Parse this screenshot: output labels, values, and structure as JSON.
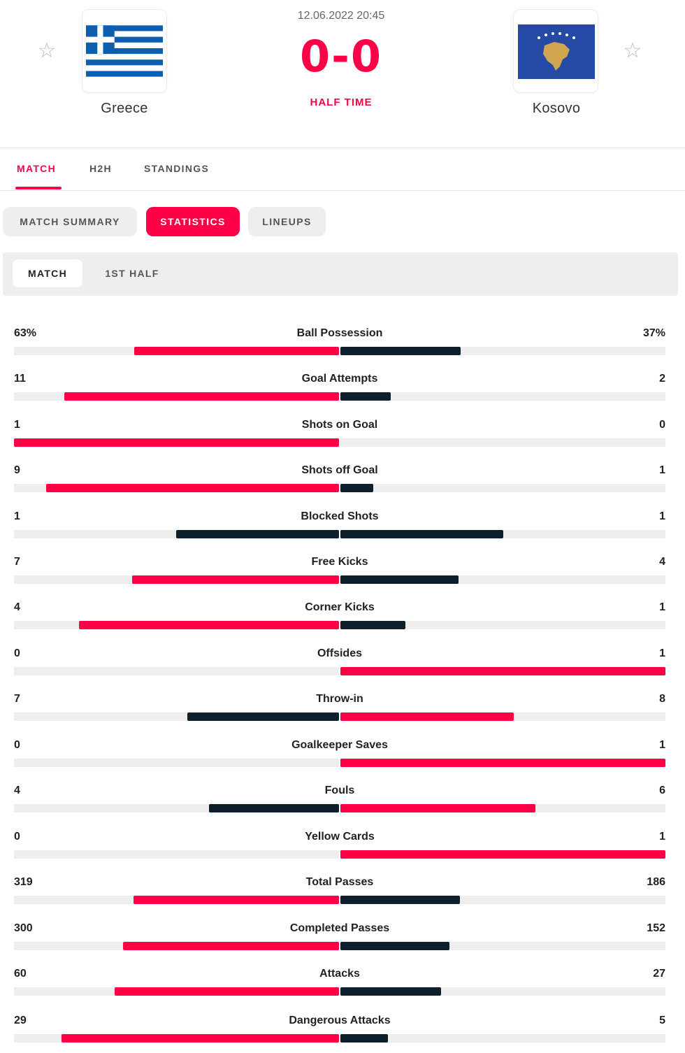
{
  "match": {
    "datetime": "12.06.2022 20:45",
    "score": "0-0",
    "status": "HALF TIME",
    "home": {
      "name": "Greece",
      "flag": "greece-flag",
      "favorite_icon": "star-outline-icon"
    },
    "away": {
      "name": "Kosovo",
      "flag": "kosovo-flag",
      "favorite_icon": "star-outline-icon"
    }
  },
  "tabs": [
    {
      "label": "MATCH",
      "active": true
    },
    {
      "label": "H2H",
      "active": false
    },
    {
      "label": "STANDINGS",
      "active": false
    }
  ],
  "subtabs": [
    {
      "label": "MATCH SUMMARY",
      "active": false
    },
    {
      "label": "STATISTICS",
      "active": true
    },
    {
      "label": "LINEUPS",
      "active": false
    }
  ],
  "period_filter": [
    {
      "label": "MATCH",
      "active": true
    },
    {
      "label": "1ST HALF",
      "active": false
    }
  ],
  "colors": {
    "accent": "#ff0046",
    "dark": "#0d1f2b",
    "track": "#eeeeee",
    "greece_blue": "#0d5eaf",
    "kosovo_blue": "#244aa5",
    "kosovo_gold": "#d0a650"
  },
  "statistics": [
    {
      "category": "Ball Possession",
      "home": "63%",
      "away": "37%",
      "home_value": 63,
      "away_value": 37
    },
    {
      "category": "Goal Attempts",
      "home": "11",
      "away": "2",
      "home_value": 11,
      "away_value": 2
    },
    {
      "category": "Shots on Goal",
      "home": "1",
      "away": "0",
      "home_value": 1,
      "away_value": 0
    },
    {
      "category": "Shots off Goal",
      "home": "9",
      "away": "1",
      "home_value": 9,
      "away_value": 1
    },
    {
      "category": "Blocked Shots",
      "home": "1",
      "away": "1",
      "home_value": 1,
      "away_value": 1
    },
    {
      "category": "Free Kicks",
      "home": "7",
      "away": "4",
      "home_value": 7,
      "away_value": 4
    },
    {
      "category": "Corner Kicks",
      "home": "4",
      "away": "1",
      "home_value": 4,
      "away_value": 1
    },
    {
      "category": "Offsides",
      "home": "0",
      "away": "1",
      "home_value": 0,
      "away_value": 1
    },
    {
      "category": "Throw-in",
      "home": "7",
      "away": "8",
      "home_value": 7,
      "away_value": 8
    },
    {
      "category": "Goalkeeper Saves",
      "home": "0",
      "away": "1",
      "home_value": 0,
      "away_value": 1
    },
    {
      "category": "Fouls",
      "home": "4",
      "away": "6",
      "home_value": 4,
      "away_value": 6
    },
    {
      "category": "Yellow Cards",
      "home": "0",
      "away": "1",
      "home_value": 0,
      "away_value": 1
    },
    {
      "category": "Total Passes",
      "home": "319",
      "away": "186",
      "home_value": 319,
      "away_value": 186
    },
    {
      "category": "Completed Passes",
      "home": "300",
      "away": "152",
      "home_value": 300,
      "away_value": 152
    },
    {
      "category": "Attacks",
      "home": "60",
      "away": "27",
      "home_value": 60,
      "away_value": 27
    },
    {
      "category": "Dangerous Attacks",
      "home": "29",
      "away": "5",
      "home_value": 29,
      "away_value": 5
    }
  ]
}
